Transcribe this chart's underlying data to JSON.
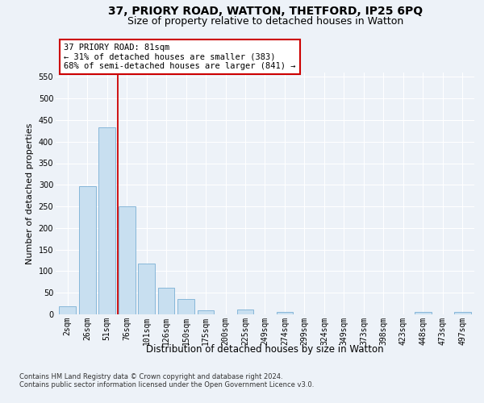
{
  "title_line1": "37, PRIORY ROAD, WATTON, THETFORD, IP25 6PQ",
  "title_line2": "Size of property relative to detached houses in Watton",
  "xlabel": "Distribution of detached houses by size in Watton",
  "ylabel": "Number of detached properties",
  "categories": [
    "2sqm",
    "26sqm",
    "51sqm",
    "76sqm",
    "101sqm",
    "126sqm",
    "150sqm",
    "175sqm",
    "200sqm",
    "225sqm",
    "249sqm",
    "274sqm",
    "299sqm",
    "324sqm",
    "349sqm",
    "373sqm",
    "398sqm",
    "423sqm",
    "448sqm",
    "473sqm",
    "497sqm"
  ],
  "values": [
    18,
    297,
    433,
    250,
    118,
    62,
    36,
    9,
    0,
    11,
    0,
    6,
    0,
    0,
    0,
    0,
    0,
    0,
    5,
    0,
    5
  ],
  "bar_color": "#c8dff0",
  "bar_edge_color": "#7aafd4",
  "vline_color": "#cc0000",
  "vline_x": 2.5,
  "annotation_text": "37 PRIORY ROAD: 81sqm\n← 31% of detached houses are smaller (383)\n68% of semi-detached houses are larger (841) →",
  "annotation_box_color": "#ffffff",
  "annotation_box_edge": "#cc0000",
  "ylim": [
    0,
    560
  ],
  "yticks": [
    0,
    50,
    100,
    150,
    200,
    250,
    300,
    350,
    400,
    450,
    500,
    550
  ],
  "footer_line1": "Contains HM Land Registry data © Crown copyright and database right 2024.",
  "footer_line2": "Contains public sector information licensed under the Open Government Licence v3.0.",
  "background_color": "#edf2f8",
  "plot_bg_color": "#edf2f8",
  "grid_color": "#ffffff",
  "title_fontsize": 10,
  "subtitle_fontsize": 9,
  "tick_fontsize": 7,
  "ylabel_fontsize": 8,
  "xlabel_fontsize": 8.5,
  "ann_fontsize": 7.5,
  "footer_fontsize": 6
}
